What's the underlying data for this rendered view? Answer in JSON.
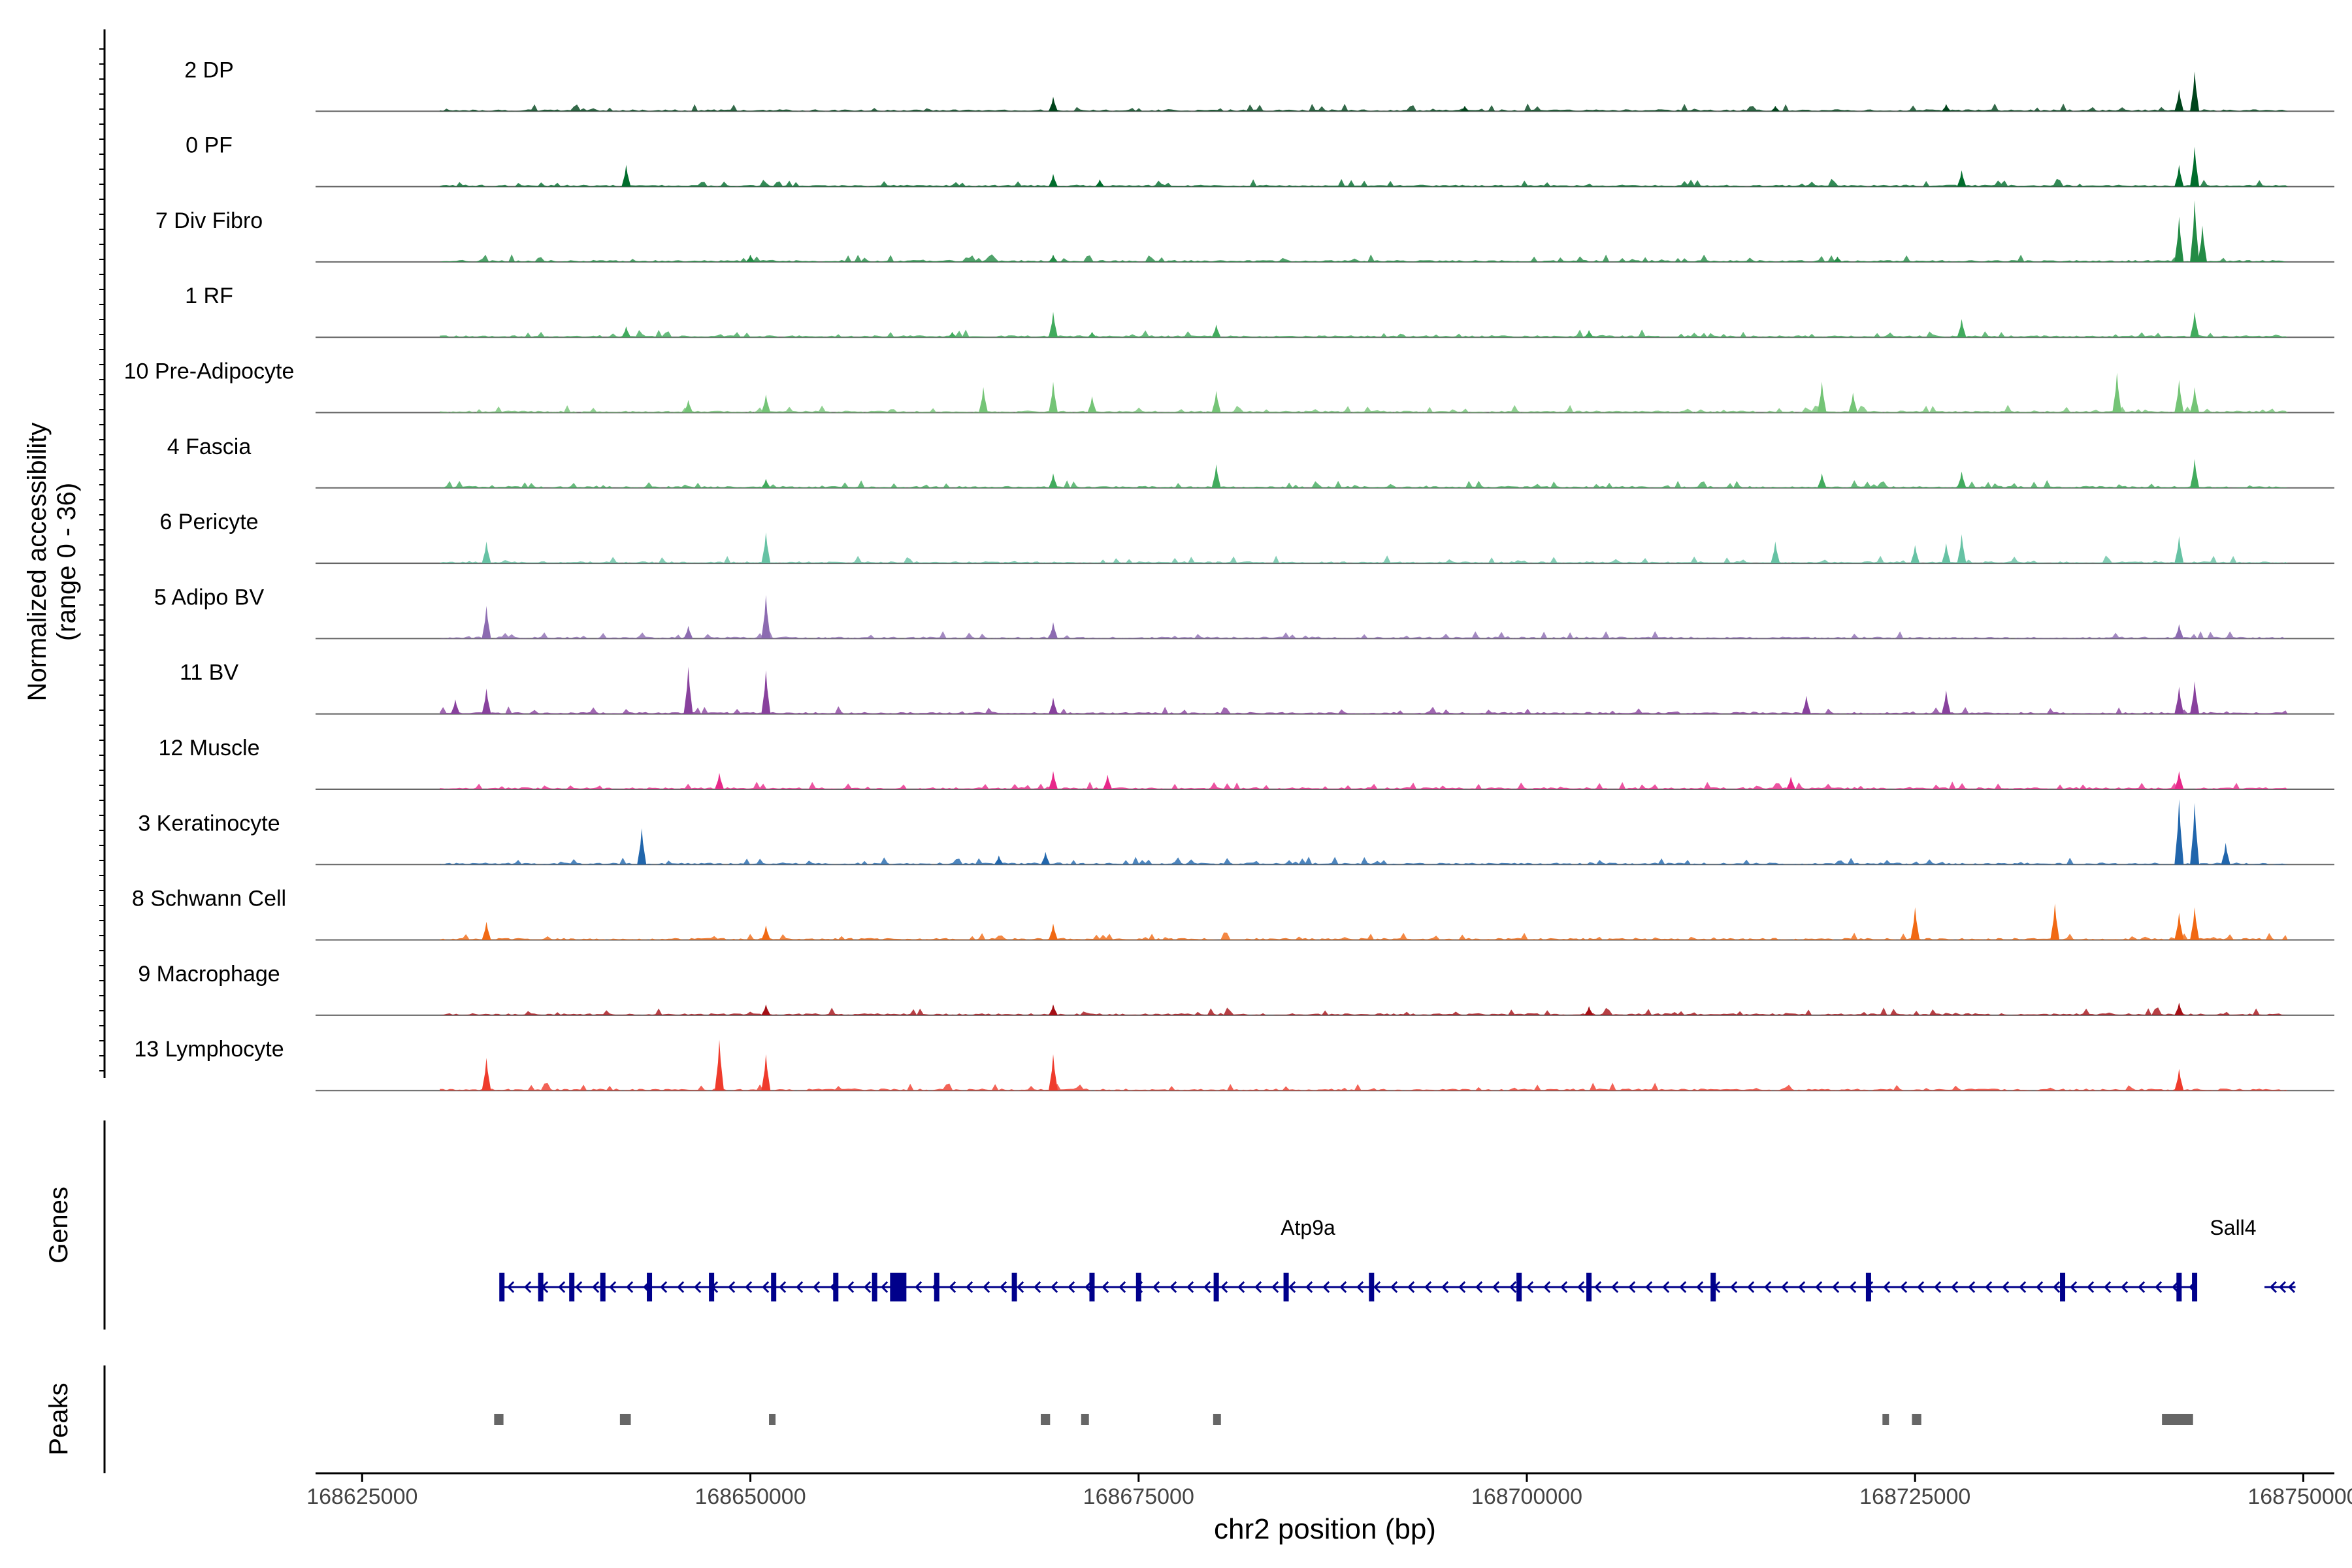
{
  "chart_data": {
    "type": "area",
    "title": "",
    "ylabel_main": "Normalized accessibility",
    "ylabel_range": "(range 0 - 36)",
    "y_range": [
      0,
      36
    ],
    "xlabel": "chr2 position (bp)",
    "xlim": [
      168622000,
      168752000
    ],
    "x_ticks": [
      168625000,
      168650000,
      168675000,
      168700000,
      168725000,
      168750000
    ],
    "x_tick_labels": [
      "168625000",
      "168650000",
      "168675000",
      "168700000",
      "168725000",
      "168750000"
    ],
    "track_extent": [
      168630000,
      168749000
    ],
    "series": [
      {
        "name": "2 DP",
        "color": "#00441b",
        "peaks": [
          {
            "x": 168669500,
            "v": 8
          },
          {
            "x": 168696000,
            "v": 3
          },
          {
            "x": 168716000,
            "v": 3
          },
          {
            "x": 168727000,
            "v": 4
          },
          {
            "x": 168742000,
            "v": 12
          },
          {
            "x": 168743000,
            "v": 22
          }
        ]
      },
      {
        "name": "0 PF",
        "color": "#006d2c",
        "peaks": [
          {
            "x": 168642000,
            "v": 12
          },
          {
            "x": 168669500,
            "v": 7
          },
          {
            "x": 168672500,
            "v": 4
          },
          {
            "x": 168728000,
            "v": 9
          },
          {
            "x": 168742000,
            "v": 12
          },
          {
            "x": 168743000,
            "v": 22
          }
        ]
      },
      {
        "name": "7 Div Fibro",
        "color": "#238b45",
        "peaks": [
          {
            "x": 168742000,
            "v": 25
          },
          {
            "x": 168743000,
            "v": 34
          },
          {
            "x": 168743500,
            "v": 20
          },
          {
            "x": 168720000,
            "v": 3
          },
          {
            "x": 168669500,
            "v": 4
          },
          {
            "x": 168650000,
            "v": 4
          }
        ]
      },
      {
        "name": "1 RF",
        "color": "#41ab5d",
        "peaks": [
          {
            "x": 168642000,
            "v": 6
          },
          {
            "x": 168669500,
            "v": 14
          },
          {
            "x": 168672000,
            "v": 3
          },
          {
            "x": 168680000,
            "v": 7
          },
          {
            "x": 168663000,
            "v": 3
          },
          {
            "x": 168704000,
            "v": 4
          },
          {
            "x": 168728000,
            "v": 10
          },
          {
            "x": 168743000,
            "v": 14
          }
        ]
      },
      {
        "name": "10 Pre-Adipocyte",
        "color": "#74c476",
        "peaks": [
          {
            "x": 168665000,
            "v": 14
          },
          {
            "x": 168669500,
            "v": 17
          },
          {
            "x": 168672000,
            "v": 9
          },
          {
            "x": 168680000,
            "v": 12
          },
          {
            "x": 168719000,
            "v": 17
          },
          {
            "x": 168721000,
            "v": 11
          },
          {
            "x": 168738000,
            "v": 22
          },
          {
            "x": 168742000,
            "v": 18
          },
          {
            "x": 168743000,
            "v": 14
          },
          {
            "x": 168646000,
            "v": 7
          },
          {
            "x": 168651000,
            "v": 10
          }
        ]
      },
      {
        "name": "4 Fascia",
        "color": "#41ab5d",
        "peaks": [
          {
            "x": 168680000,
            "v": 13
          },
          {
            "x": 168669500,
            "v": 8
          },
          {
            "x": 168651000,
            "v": 5
          },
          {
            "x": 168719000,
            "v": 8
          },
          {
            "x": 168728000,
            "v": 9
          },
          {
            "x": 168743000,
            "v": 16
          }
        ]
      },
      {
        "name": "6 Pericyte",
        "color": "#66c2a4",
        "peaks": [
          {
            "x": 168633000,
            "v": 12
          },
          {
            "x": 168651000,
            "v": 17
          },
          {
            "x": 168725000,
            "v": 10
          },
          {
            "x": 168716000,
            "v": 12
          },
          {
            "x": 168727000,
            "v": 11
          },
          {
            "x": 168728000,
            "v": 16
          },
          {
            "x": 168742000,
            "v": 15
          }
        ]
      },
      {
        "name": "5 Adipo BV",
        "color": "#8c6bb1",
        "peaks": [
          {
            "x": 168633000,
            "v": 18
          },
          {
            "x": 168651000,
            "v": 24
          },
          {
            "x": 168646000,
            "v": 7
          },
          {
            "x": 168669500,
            "v": 9
          },
          {
            "x": 168742000,
            "v": 8
          }
        ]
      },
      {
        "name": "11 BV",
        "color": "#88419d",
        "peaks": [
          {
            "x": 168631000,
            "v": 8
          },
          {
            "x": 168633000,
            "v": 14
          },
          {
            "x": 168646000,
            "v": 26
          },
          {
            "x": 168651000,
            "v": 24
          },
          {
            "x": 168669500,
            "v": 9
          },
          {
            "x": 168718000,
            "v": 10
          },
          {
            "x": 168727000,
            "v": 13
          },
          {
            "x": 168742000,
            "v": 15
          },
          {
            "x": 168743000,
            "v": 18
          }
        ]
      },
      {
        "name": "12 Muscle",
        "color": "#e7298a",
        "peaks": [
          {
            "x": 168648000,
            "v": 9
          },
          {
            "x": 168669500,
            "v": 10
          },
          {
            "x": 168673000,
            "v": 8
          },
          {
            "x": 168717000,
            "v": 7
          },
          {
            "x": 168742000,
            "v": 10
          }
        ]
      },
      {
        "name": "3 Keratinocyte",
        "color": "#2166ac",
        "peaks": [
          {
            "x": 168643000,
            "v": 20
          },
          {
            "x": 168669000,
            "v": 7
          },
          {
            "x": 168666000,
            "v": 5
          },
          {
            "x": 168742000,
            "v": 36
          },
          {
            "x": 168743000,
            "v": 34
          },
          {
            "x": 168745000,
            "v": 12
          }
        ]
      },
      {
        "name": "8 Schwann Cell",
        "color": "#f16913",
        "peaks": [
          {
            "x": 168633000,
            "v": 10
          },
          {
            "x": 168651000,
            "v": 8
          },
          {
            "x": 168669500,
            "v": 9
          },
          {
            "x": 168725000,
            "v": 18
          },
          {
            "x": 168734000,
            "v": 20
          },
          {
            "x": 168742000,
            "v": 15
          },
          {
            "x": 168743000,
            "v": 18
          }
        ]
      },
      {
        "name": "9 Macrophage",
        "color": "#a50f15",
        "peaks": [
          {
            "x": 168651000,
            "v": 6
          },
          {
            "x": 168669500,
            "v": 6
          },
          {
            "x": 168704000,
            "v": 5
          },
          {
            "x": 168742000,
            "v": 7
          }
        ]
      },
      {
        "name": "13 Lymphocyte",
        "color": "#ef3b2c",
        "peaks": [
          {
            "x": 168633000,
            "v": 18
          },
          {
            "x": 168648000,
            "v": 28
          },
          {
            "x": 168651000,
            "v": 20
          },
          {
            "x": 168669500,
            "v": 20
          },
          {
            "x": 168742000,
            "v": 12
          }
        ]
      }
    ],
    "genes_label": "Genes",
    "genes": [
      {
        "name": "Atp9a",
        "start": 168634000,
        "end": 168743000,
        "strand": "-",
        "color": "#00008b",
        "exons": [
          168634000,
          168636500,
          168638500,
          168640500,
          168643500,
          168647500,
          168651500,
          168655500,
          168658000,
          168662000,
          168667000,
          168672000,
          168675000,
          168680000,
          168684500,
          168690000,
          168699500,
          168704000,
          168712000,
          168722000,
          168734500,
          168742000,
          168743000
        ],
        "big_exon": 168659500
      },
      {
        "name": "Sall4",
        "start": 168747500,
        "end": 168749500,
        "strand": "-",
        "color": "#00008b",
        "exons": [],
        "big_exon": null
      }
    ],
    "peaks_label": "Peaks",
    "peak_regions": [
      [
        168633500,
        168634100
      ],
      [
        168641600,
        168642300
      ],
      [
        168651200,
        168651600
      ],
      [
        168668700,
        168669300
      ],
      [
        168671300,
        168671800
      ],
      [
        168679800,
        168680300
      ],
      [
        168722900,
        168723300
      ],
      [
        168724800,
        168725400
      ],
      [
        168740900,
        168742900
      ]
    ]
  }
}
